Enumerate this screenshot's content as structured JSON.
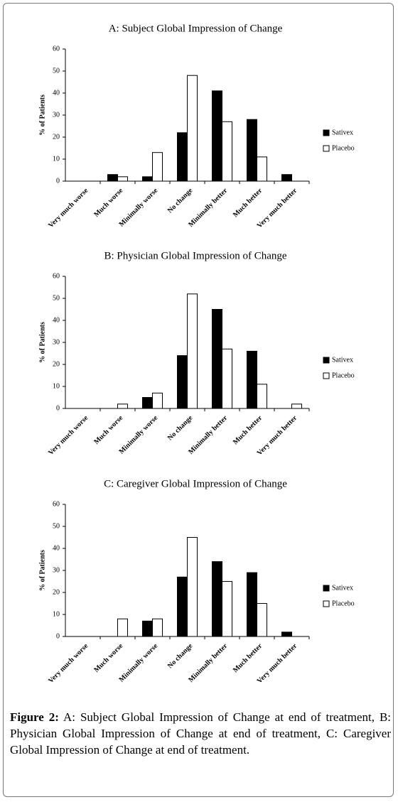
{
  "chart_data": [
    {
      "type": "bar",
      "title": "A: Subject Global Impression of Change",
      "y_label": "% of Patients",
      "categories": [
        "Very much worse",
        "Much worse",
        "Minimally worse",
        "No change",
        "Minimally better",
        "Much better",
        "Very much better"
      ],
      "series": [
        {
          "name": "Sativex",
          "color": "#000000",
          "values": [
            0,
            3,
            2,
            22,
            41,
            28,
            3
          ]
        },
        {
          "name": "Placebo",
          "color": "#ffffff",
          "values": [
            0,
            2,
            13,
            48,
            27,
            11,
            0
          ]
        }
      ],
      "ylim": [
        0,
        60
      ],
      "yticks": [
        0,
        10,
        20,
        30,
        40,
        50,
        60
      ],
      "legend": "right"
    },
    {
      "type": "bar",
      "title": "B: Physician Global Impression of Change",
      "y_label": "% of Patients",
      "categories": [
        "Very much worse",
        "Much worse",
        "Minimally worse",
        "No change",
        "Minimally better",
        "Much better",
        "Very much better"
      ],
      "series": [
        {
          "name": "Sativex",
          "color": "#000000",
          "values": [
            0,
            0,
            5,
            24,
            45,
            26,
            0
          ]
        },
        {
          "name": "Placebo",
          "color": "#ffffff",
          "values": [
            0,
            2,
            7,
            52,
            27,
            11,
            2
          ]
        }
      ],
      "ylim": [
        0,
        60
      ],
      "yticks": [
        0,
        10,
        20,
        30,
        40,
        50,
        60
      ],
      "legend": "right"
    },
    {
      "type": "bar",
      "title": "C: Caregiver Global Impression of Change",
      "y_label": "% of Patients",
      "categories": [
        "Very much worse",
        "Much worse",
        "Minimally worse",
        "No change",
        "Minimally better",
        "Much better",
        "Very much better"
      ],
      "series": [
        {
          "name": "Sativex",
          "color": "#000000",
          "values": [
            0,
            0,
            7,
            27,
            34,
            29,
            2
          ]
        },
        {
          "name": "Placebo",
          "color": "#ffffff",
          "values": [
            0,
            8,
            8,
            45,
            25,
            15,
            0
          ]
        }
      ],
      "ylim": [
        0,
        60
      ],
      "yticks": [
        0,
        10,
        20,
        30,
        40,
        50,
        60
      ],
      "legend": "right"
    }
  ],
  "caption": {
    "label": "Figure 2:",
    "text": "A: Subject Global Impression of Change at end of treatment, B: Physician Global Impression of Change at end of treatment, C: Caregiver Global Impression of Change at end of treatment."
  }
}
